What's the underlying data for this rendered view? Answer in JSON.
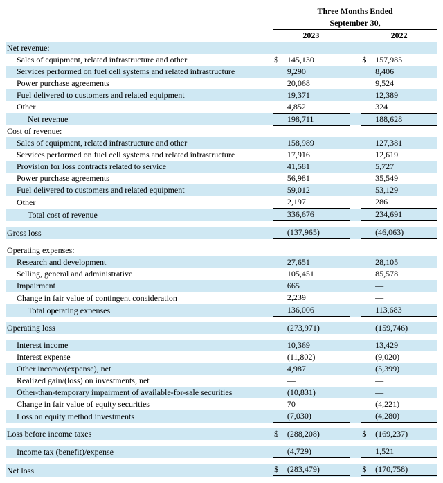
{
  "colors": {
    "shade": "#cfe8f3",
    "background": "#ffffff",
    "text": "#000000",
    "rule": "#000000"
  },
  "typography": {
    "family": "Times New Roman",
    "size_pt": 9
  },
  "header": {
    "title_line1": "Three Months Ended",
    "title_line2": "September 30,",
    "years": [
      "2023",
      "2022"
    ]
  },
  "currency": "$",
  "emdash": "—",
  "sections": {
    "net_revenue": {
      "title": "Net revenue:",
      "rows": [
        {
          "label": "Sales of equipment, related infrastructure and other",
          "v": [
            "145,130",
            "157,985"
          ],
          "sym": true
        },
        {
          "label": "Services performed on fuel cell systems and related infrastructure",
          "v": [
            "9,290",
            "8,406"
          ]
        },
        {
          "label": "Power purchase agreements",
          "v": [
            "20,068",
            "9,524"
          ]
        },
        {
          "label": "Fuel delivered to customers and related equipment",
          "v": [
            "19,371",
            "12,389"
          ]
        },
        {
          "label": "Other",
          "v": [
            "4,852",
            "324"
          ],
          "rule": true
        }
      ],
      "total": {
        "label": "Net revenue",
        "v": [
          "198,711",
          "188,628"
        ],
        "rule": true
      }
    },
    "cost_of_revenue": {
      "title": "Cost of revenue:",
      "rows": [
        {
          "label": "Sales of equipment, related infrastructure and other",
          "v": [
            "158,989",
            "127,381"
          ]
        },
        {
          "label": "Services performed on fuel cell systems and related infrastructure",
          "v": [
            "17,916",
            "12,619"
          ]
        },
        {
          "label": "Provision for loss contracts related to service",
          "v": [
            "41,581",
            "5,727"
          ]
        },
        {
          "label": "Power purchase agreements",
          "v": [
            "56,981",
            "35,549"
          ]
        },
        {
          "label": "Fuel delivered to customers and related equipment",
          "v": [
            "59,012",
            "53,129"
          ]
        },
        {
          "label": "Other",
          "v": [
            "2,197",
            "286"
          ],
          "rule": true
        }
      ],
      "total": {
        "label": "Total cost of revenue",
        "v": [
          "336,676",
          "234,691"
        ],
        "rule": true
      }
    },
    "gross_loss": {
      "label": "Gross loss",
      "v": [
        "(137,965)",
        "(46,063)"
      ],
      "rule": true
    },
    "operating_expenses": {
      "title": "Operating expenses:",
      "rows": [
        {
          "label": "Research and development",
          "v": [
            "27,651",
            "28,105"
          ]
        },
        {
          "label": "Selling, general and administrative",
          "v": [
            "105,451",
            "85,578"
          ]
        },
        {
          "label": "Impairment",
          "v": [
            "665",
            "—"
          ]
        },
        {
          "label": "Change in fair value of contingent consideration",
          "v": [
            "2,239",
            "—"
          ],
          "rule": true
        }
      ],
      "total": {
        "label": "Total operating expenses",
        "v": [
          "136,006",
          "113,683"
        ],
        "rule": true
      }
    },
    "operating_loss": {
      "label": "Operating loss",
      "v": [
        "(273,971)",
        "(159,746)"
      ]
    },
    "non_operating": [
      {
        "label": "Interest income",
        "v": [
          "10,369",
          "13,429"
        ]
      },
      {
        "label": "Interest expense",
        "v": [
          "(11,802)",
          "(9,020)"
        ]
      },
      {
        "label": "Other income/(expense), net",
        "v": [
          "4,987",
          "(5,399)"
        ]
      },
      {
        "label": "Realized gain/(loss) on investments, net",
        "v": [
          "—",
          "—"
        ]
      },
      {
        "label": "Other-than-temporary impairment of available-for-sale securities",
        "v": [
          "(10,831)",
          "—"
        ]
      },
      {
        "label": "Change in fair value of equity securities",
        "v": [
          "70",
          "(4,221)"
        ]
      },
      {
        "label": "Loss on equity method investments",
        "v": [
          "(7,030)",
          "(4,280)"
        ],
        "rule": true
      }
    ],
    "loss_before_tax": {
      "label": "Loss before income taxes",
      "v": [
        "(288,208)",
        "(169,237)"
      ],
      "sym": true
    },
    "income_tax": {
      "label": "Income tax (benefit)/expense",
      "v": [
        "(4,729)",
        "1,521"
      ],
      "rule": true
    },
    "net_loss": {
      "label": "Net loss",
      "v": [
        "(283,479)",
        "(170,758)"
      ],
      "sym": true,
      "dbl": true
    }
  }
}
